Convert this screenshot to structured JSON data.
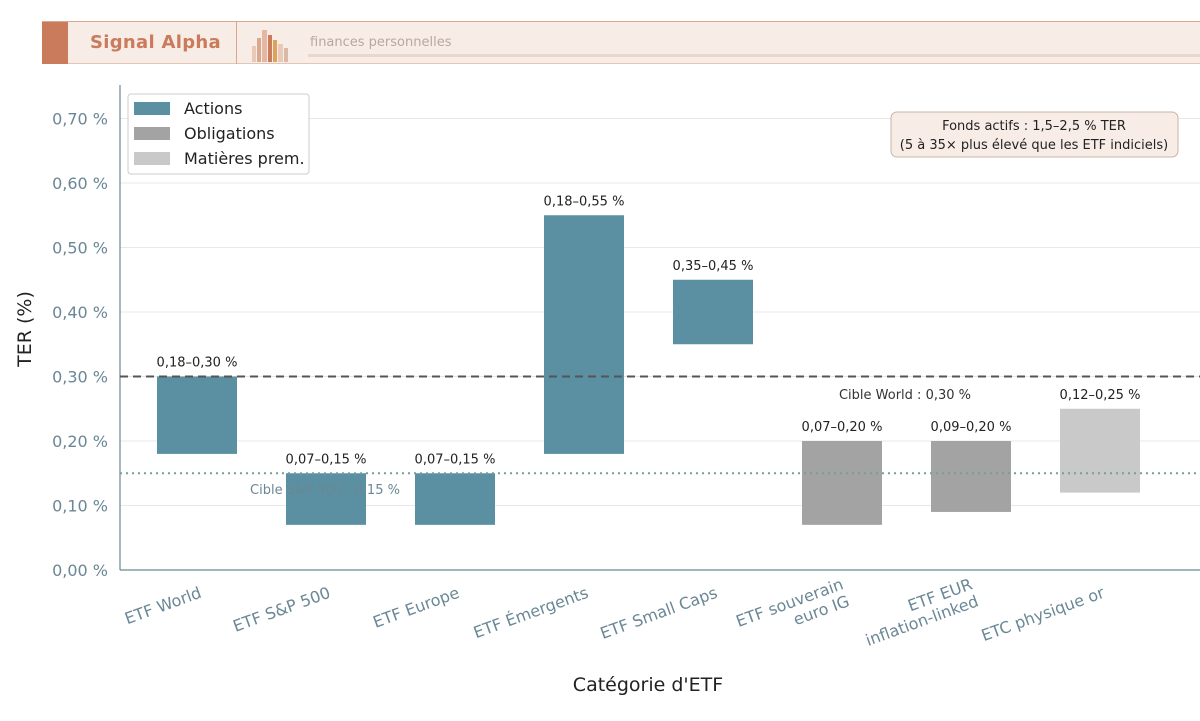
{
  "header": {
    "brand": "Signal Alpha",
    "tagline": "finances personnelles",
    "logo_icon": "bar-chart-logo-icon",
    "accent_color": "#c97b5c",
    "background_color": "#f8ece6"
  },
  "chart_data": {
    "type": "bar",
    "subtype": "floating-range",
    "xlabel": "Catégorie d'ETF",
    "ylabel": "TER (%)",
    "ylim": [
      0,
      0.75
    ],
    "yticks": [
      0,
      0.1,
      0.2,
      0.3,
      0.4,
      0.5,
      0.6,
      0.7
    ],
    "ytick_labels": [
      "0,00 %",
      "0,10 %",
      "0,20 %",
      "0,30 %",
      "0,40 %",
      "0,50 %",
      "0,60 %",
      "0,70 %"
    ],
    "grid": "horizontal",
    "legend_position": "top-left",
    "categories": [
      [
        "ETF World"
      ],
      [
        "ETF S&P 500"
      ],
      [
        "ETF Europe"
      ],
      [
        "ETF Émergents"
      ],
      [
        "ETF Small Caps"
      ],
      [
        "ETF souverain",
        "euro IG"
      ],
      [
        "ETF EUR",
        "inflation-linked"
      ],
      [
        "ETC physique or"
      ]
    ],
    "bars": [
      {
        "low": 0.18,
        "high": 0.3,
        "group": "Actions",
        "label": "0,18–0,30 %"
      },
      {
        "low": 0.07,
        "high": 0.15,
        "group": "Actions",
        "label": "0,07–0,15 %"
      },
      {
        "low": 0.07,
        "high": 0.15,
        "group": "Actions",
        "label": "0,07–0,15 %"
      },
      {
        "low": 0.18,
        "high": 0.55,
        "group": "Actions",
        "label": "0,18–0,55 %"
      },
      {
        "low": 0.35,
        "high": 0.45,
        "group": "Actions",
        "label": "0,35–0,45 %"
      },
      {
        "low": 0.07,
        "high": 0.2,
        "group": "Obligations",
        "label": "0,07–0,20 %"
      },
      {
        "low": 0.09,
        "high": 0.2,
        "group": "Obligations",
        "label": "0,09–0,20 %"
      },
      {
        "low": 0.12,
        "high": 0.25,
        "group": "Matières prem.",
        "label": "0,12–0,25 %"
      }
    ],
    "legend": [
      {
        "name": "Actions",
        "color": "#5b8fa2"
      },
      {
        "name": "Obligations",
        "color": "#a3a3a3"
      },
      {
        "name": "Matières prem.",
        "color": "#c9c9c9"
      }
    ],
    "reference_lines": [
      {
        "y": 0.3,
        "style": "dashed",
        "color": "#555555",
        "label": "Cible World : 0,30 %"
      },
      {
        "y": 0.15,
        "style": "dotted",
        "color": "#6fa396",
        "label": "Cible S&P 500 : 0,15 %"
      }
    ],
    "annotation": [
      "Fonds actifs : 1,5–2,5 % TER",
      "(5 à 35× plus élevé que les ETF indiciels)"
    ],
    "colors": {
      "axis": "#6a8795",
      "tick_text": "#6a8795",
      "grid": "#e8e8e8"
    }
  }
}
